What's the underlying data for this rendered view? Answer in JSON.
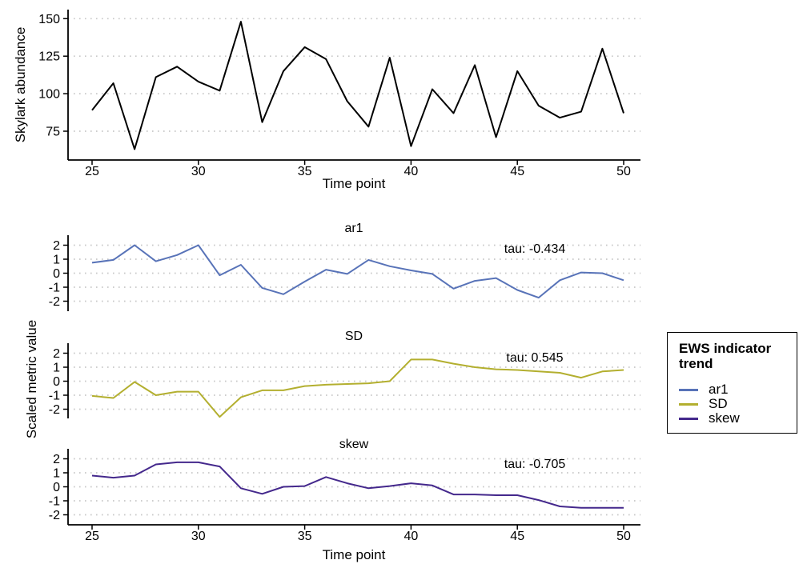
{
  "figure": {
    "background": "#ffffff",
    "grid_color": "#c7c7c7",
    "axis_color": "#000000",
    "top_chart": {
      "ylabel": "Skylark abundance",
      "xlabel": "Time point"
    },
    "facet_block": {
      "ylabel": "Scaled metric value",
      "xlabel": "Time point"
    },
    "legend": {
      "title": "EWS indicator trend",
      "position": "right",
      "items": [
        {
          "label": "ar1",
          "color": "#5873b8"
        },
        {
          "label": "SD",
          "color": "#b3af2f"
        },
        {
          "label": "skew",
          "color": "#44288c"
        }
      ]
    }
  },
  "chart_data": [
    {
      "type": "line",
      "panel": "abundance",
      "title": "",
      "ylabel": "Skylark abundance",
      "xlabel": "Time point",
      "x": [
        25,
        26,
        27,
        28,
        29,
        30,
        31,
        32,
        33,
        34,
        35,
        36,
        37,
        38,
        39,
        40,
        41,
        42,
        43,
        44,
        45,
        46,
        47,
        48,
        49,
        50
      ],
      "values": [
        89,
        107,
        63,
        111,
        118,
        108,
        102,
        148,
        81,
        115,
        131,
        123,
        95,
        78,
        124,
        65,
        103,
        87,
        119,
        71,
        115,
        92,
        84,
        88,
        130,
        87
      ],
      "ylim": [
        56,
        156
      ],
      "yticks": [
        75,
        100,
        125,
        150
      ],
      "xticks": [
        25,
        30,
        35,
        40,
        45,
        50
      ],
      "grid": "dotted-horizontal",
      "line_color": "#000000"
    },
    {
      "type": "line",
      "panel": "ar1",
      "title": "ar1",
      "annotation": "tau: -0.434",
      "tau": -0.434,
      "x": [
        25,
        26,
        27,
        28,
        29,
        30,
        31,
        32,
        33,
        34,
        35,
        36,
        37,
        38,
        39,
        40,
        41,
        42,
        43,
        44,
        45,
        46,
        47,
        48,
        49,
        50
      ],
      "values": [
        0.75,
        0.95,
        2,
        0.85,
        1.3,
        2,
        -0.15,
        0.6,
        -1.05,
        -1.5,
        -0.6,
        0.25,
        -0.05,
        0.95,
        0.5,
        0.2,
        -0.05,
        -1.1,
        -0.55,
        -0.35,
        -1.2,
        -1.75,
        -0.5,
        0.05,
        0,
        -0.5
      ],
      "ylim": [
        -2.7,
        2.7
      ],
      "yticks": [
        2,
        1,
        0,
        -1,
        -2
      ],
      "xticks": [
        25,
        30,
        35,
        40,
        45,
        50
      ],
      "grid": "dotted-horizontal",
      "line_color": "#5873b8"
    },
    {
      "type": "line",
      "panel": "SD",
      "title": "SD",
      "annotation": "tau: 0.545",
      "tau": 0.545,
      "x": [
        25,
        26,
        27,
        28,
        29,
        30,
        31,
        32,
        33,
        34,
        35,
        36,
        37,
        38,
        39,
        40,
        41,
        42,
        43,
        44,
        45,
        46,
        47,
        48,
        49,
        50
      ],
      "values": [
        -1.05,
        -1.2,
        -0.05,
        -1,
        -0.75,
        -0.75,
        -2.55,
        -1.15,
        -0.65,
        -0.65,
        -0.35,
        -0.25,
        -0.2,
        -0.15,
        0,
        1.55,
        1.55,
        1.25,
        1,
        0.85,
        0.8,
        0.7,
        0.6,
        0.25,
        0.7,
        0.8
      ],
      "ylim": [
        -2.7,
        2.7
      ],
      "yticks": [
        2,
        1,
        0,
        -1,
        -2
      ],
      "xticks": [
        25,
        30,
        35,
        40,
        45,
        50
      ],
      "grid": "dotted-horizontal",
      "line_color": "#b3af2f"
    },
    {
      "type": "line",
      "panel": "skew",
      "title": "skew",
      "annotation": "tau: -0.705",
      "tau": -0.705,
      "x": [
        25,
        26,
        27,
        28,
        29,
        30,
        31,
        32,
        33,
        34,
        35,
        36,
        37,
        38,
        39,
        40,
        41,
        42,
        43,
        44,
        45,
        46,
        47,
        48,
        49,
        50
      ],
      "values": [
        0.8,
        0.65,
        0.8,
        1.6,
        1.75,
        1.75,
        1.45,
        -0.1,
        -0.5,
        0,
        0.05,
        0.7,
        0.25,
        -0.1,
        0.05,
        0.25,
        0.1,
        -0.55,
        -0.55,
        -0.6,
        -0.6,
        -0.95,
        -1.4,
        -1.5,
        -1.5,
        -1.5
      ],
      "ylim": [
        -2.7,
        2.7
      ],
      "yticks": [
        2,
        1,
        0,
        -1,
        -2
      ],
      "xticks": [
        25,
        30,
        35,
        40,
        45,
        50
      ],
      "grid": "dotted-horizontal",
      "line_color": "#44288c"
    }
  ]
}
